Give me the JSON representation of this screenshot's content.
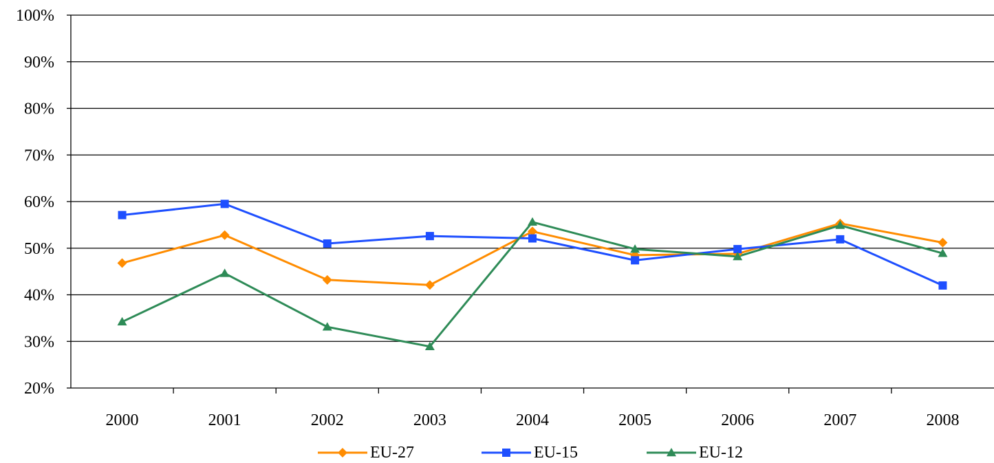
{
  "chart_data": {
    "type": "line",
    "title": "",
    "xlabel": "",
    "ylabel": "",
    "categories": [
      "2000",
      "2001",
      "2002",
      "2003",
      "2004",
      "2005",
      "2006",
      "2007",
      "2008"
    ],
    "ylim": [
      20,
      100
    ],
    "yticks": [
      "20%",
      "30%",
      "40%",
      "50%",
      "60%",
      "70%",
      "80%",
      "90%",
      "100%"
    ],
    "grid": "horizontal",
    "legend_position": "bottom",
    "series": [
      {
        "name": "EU-27",
        "color": "#FF8C00",
        "marker": "diamond",
        "values": [
          46.8,
          52.8,
          43.2,
          42.1,
          53.6,
          48.5,
          48.8,
          55.3,
          51.2
        ]
      },
      {
        "name": "EU-15",
        "color": "#1E4FFF",
        "marker": "square",
        "values": [
          57.1,
          59.5,
          51.0,
          52.6,
          52.1,
          47.4,
          49.8,
          51.9,
          42.0
        ]
      },
      {
        "name": "EU-12",
        "color": "#2E8B57",
        "marker": "triangle",
        "values": [
          34.2,
          44.6,
          33.1,
          28.9,
          55.6,
          49.8,
          48.2,
          54.9,
          48.9
        ]
      }
    ]
  }
}
